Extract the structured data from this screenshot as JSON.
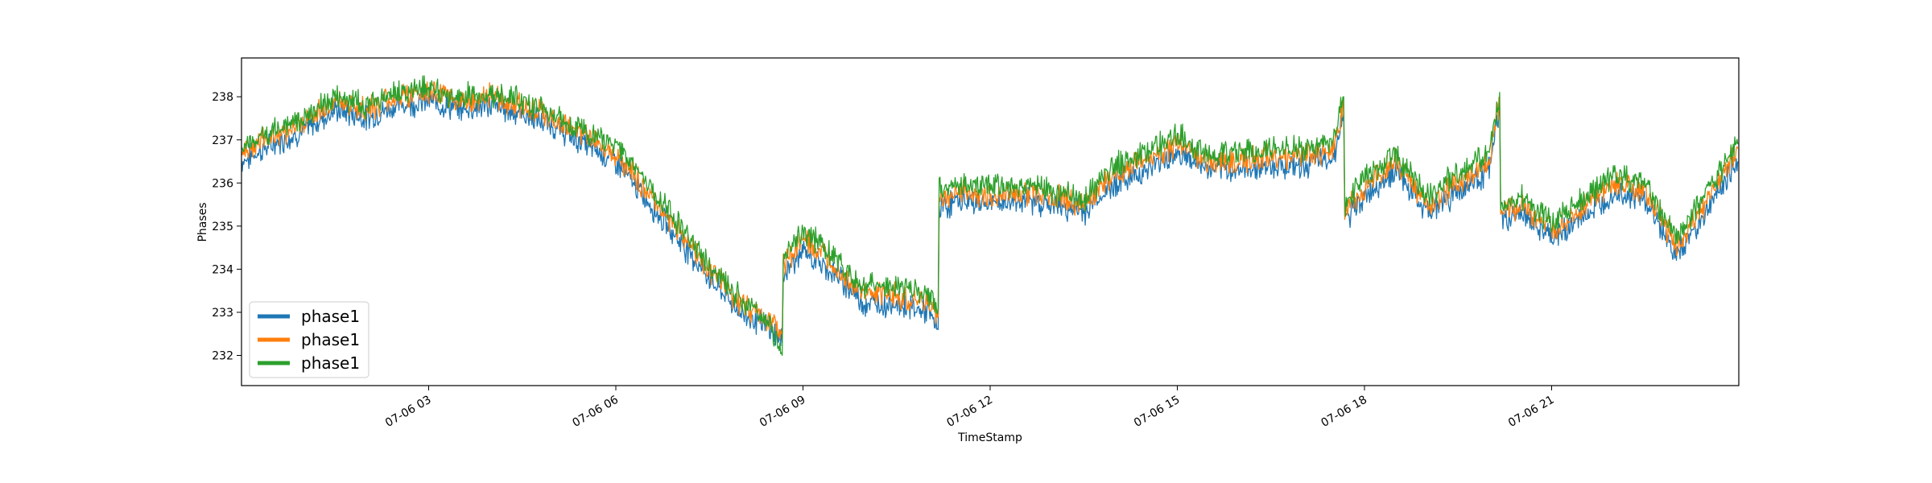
{
  "chart_data": {
    "type": "line",
    "xlabel": "TimeStamp",
    "ylabel": "Phases",
    "xlim": [
      "07-06 00:00",
      "07-07 00:00"
    ],
    "ylim": [
      231.3,
      238.9
    ],
    "x_ticks": [
      {
        "label": "07-06 03",
        "hour": 3
      },
      {
        "label": "07-06 06",
        "hour": 6
      },
      {
        "label": "07-06 09",
        "hour": 9
      },
      {
        "label": "07-06 12",
        "hour": 12
      },
      {
        "label": "07-06 15",
        "hour": 15
      },
      {
        "label": "07-06 18",
        "hour": 18
      },
      {
        "label": "07-06 21",
        "hour": 21
      }
    ],
    "y_ticks": [
      232,
      233,
      234,
      235,
      236,
      237,
      238
    ],
    "grid": false,
    "legend": {
      "placement": "lower-left"
    },
    "series": [
      {
        "name": "phase1",
        "color": "#1f77b4",
        "x": [
          "00:00",
          "00:30",
          "01:00",
          "01:30",
          "02:00",
          "02:30",
          "03:00",
          "03:30",
          "04:00",
          "04:30",
          "05:00",
          "05:30",
          "06:00",
          "06:30",
          "07:00",
          "07:30",
          "08:00",
          "08:30",
          "08:40",
          "08:41",
          "09:00",
          "09:30",
          "10:00",
          "10:30",
          "11:00",
          "11:10",
          "11:11",
          "11:30",
          "12:00",
          "12:30",
          "13:00",
          "13:30",
          "14:00",
          "14:30",
          "15:00",
          "15:30",
          "16:00",
          "16:30",
          "17:00",
          "17:30",
          "17:40",
          "17:41",
          "18:00",
          "18:30",
          "19:00",
          "19:30",
          "20:00",
          "20:10",
          "20:11",
          "20:30",
          "21:00",
          "21:30",
          "22:00",
          "22:30",
          "23:00",
          "23:30",
          "23:59"
        ],
        "values": [
          236.5,
          236.9,
          237.2,
          237.7,
          237.5,
          237.8,
          237.9,
          237.7,
          237.8,
          237.6,
          237.3,
          236.9,
          236.5,
          235.6,
          234.7,
          233.8,
          233.0,
          232.6,
          232.3,
          233.9,
          234.4,
          233.9,
          233.2,
          233.2,
          233.0,
          232.6,
          235.4,
          235.6,
          235.5,
          235.6,
          235.5,
          235.3,
          236.0,
          236.3,
          236.7,
          236.3,
          236.3,
          236.4,
          236.4,
          236.6,
          237.6,
          235.1,
          235.7,
          236.3,
          235.3,
          235.8,
          236.3,
          237.8,
          235.1,
          235.3,
          234.7,
          235.2,
          235.8,
          235.6,
          234.3,
          235.4,
          236.5
        ]
      },
      {
        "name": "phase1",
        "color": "#ff7f0e",
        "x": [
          "00:00",
          "00:30",
          "01:00",
          "01:30",
          "02:00",
          "02:30",
          "03:00",
          "03:30",
          "04:00",
          "04:30",
          "05:00",
          "05:30",
          "06:00",
          "06:30",
          "07:00",
          "07:30",
          "08:00",
          "08:30",
          "08:40",
          "08:41",
          "09:00",
          "09:30",
          "10:00",
          "10:30",
          "11:00",
          "11:10",
          "11:11",
          "11:30",
          "12:00",
          "12:30",
          "13:00",
          "13:30",
          "14:00",
          "14:30",
          "15:00",
          "15:30",
          "16:00",
          "16:30",
          "17:00",
          "17:30",
          "17:40",
          "17:41",
          "18:00",
          "18:30",
          "19:00",
          "19:30",
          "20:00",
          "20:10",
          "20:11",
          "20:30",
          "21:00",
          "21:30",
          "22:00",
          "22:30",
          "23:00",
          "23:30",
          "23:59"
        ],
        "values": [
          236.7,
          237.1,
          237.4,
          237.9,
          237.7,
          238.0,
          238.1,
          237.9,
          238.0,
          237.8,
          237.5,
          237.1,
          236.7,
          235.8,
          234.9,
          234.0,
          233.2,
          232.8,
          232.5,
          234.1,
          234.7,
          234.1,
          233.4,
          233.4,
          233.2,
          232.9,
          235.6,
          235.8,
          235.7,
          235.8,
          235.7,
          235.5,
          236.2,
          236.5,
          236.9,
          236.5,
          236.5,
          236.6,
          236.6,
          236.8,
          237.8,
          235.3,
          235.9,
          236.5,
          235.5,
          236.0,
          236.5,
          238.0,
          235.3,
          235.5,
          234.9,
          235.4,
          236.0,
          235.8,
          234.5,
          235.6,
          236.8
        ]
      },
      {
        "name": "phase1",
        "color": "#2ca02c",
        "x": [
          "00:00",
          "00:30",
          "01:00",
          "01:30",
          "02:00",
          "02:30",
          "03:00",
          "03:30",
          "04:00",
          "04:30",
          "05:00",
          "05:30",
          "06:00",
          "06:30",
          "07:00",
          "07:30",
          "08:00",
          "08:30",
          "08:40",
          "08:41",
          "09:00",
          "09:30",
          "10:00",
          "10:30",
          "11:00",
          "11:10",
          "11:11",
          "11:30",
          "12:00",
          "12:30",
          "13:00",
          "13:30",
          "14:00",
          "14:30",
          "15:00",
          "15:30",
          "16:00",
          "16:30",
          "17:00",
          "17:30",
          "17:40",
          "17:41",
          "18:00",
          "18:30",
          "19:00",
          "19:30",
          "20:00",
          "20:10",
          "20:11",
          "20:30",
          "21:00",
          "21:30",
          "22:00",
          "22:30",
          "23:00",
          "23:30",
          "23:59"
        ],
        "values": [
          236.8,
          237.2,
          237.5,
          238.0,
          237.8,
          238.1,
          238.2,
          238.0,
          238.1,
          237.9,
          237.6,
          237.2,
          236.9,
          236.0,
          235.1,
          234.1,
          233.3,
          232.7,
          232.0,
          234.3,
          234.9,
          234.3,
          233.6,
          233.6,
          233.4,
          233.1,
          235.8,
          236.0,
          235.9,
          236.0,
          235.8,
          235.6,
          236.4,
          236.7,
          237.1,
          236.7,
          236.7,
          236.8,
          236.8,
          237.0,
          238.0,
          235.5,
          236.1,
          236.7,
          235.7,
          236.2,
          236.7,
          238.1,
          235.5,
          235.7,
          235.1,
          235.6,
          236.2,
          236.0,
          234.7,
          235.8,
          236.9
        ]
      }
    ]
  }
}
